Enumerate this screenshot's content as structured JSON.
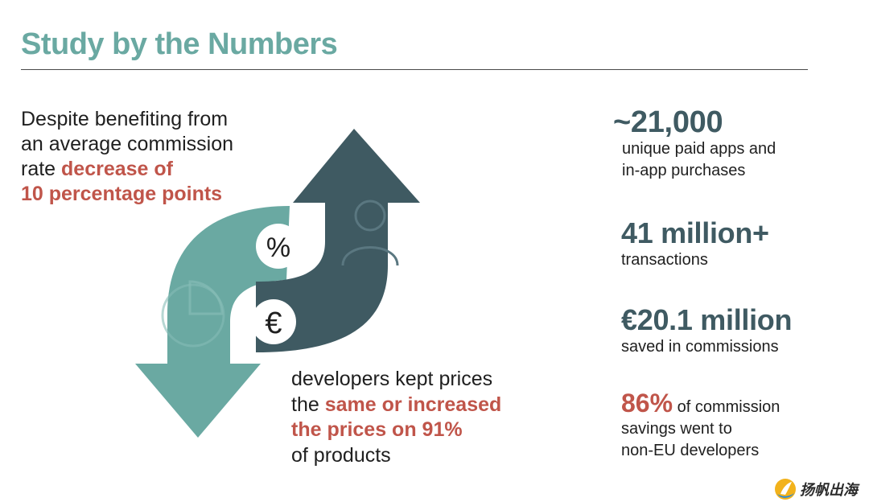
{
  "title": "Study by the Numbers",
  "intro": {
    "line1": "Despite benefiting from",
    "line2": "an average commission",
    "line3_plain": "rate ",
    "line3_highlight": "decrease of",
    "line4_highlight": "10 percentage points"
  },
  "outcome": {
    "line1": "developers kept prices",
    "line2_plain": "the ",
    "line2_highlight": "same or increased",
    "line3_highlight": "the prices on 91%",
    "line4": "of products"
  },
  "graphic": {
    "percent_symbol": "%",
    "euro_symbol": "€"
  },
  "stats": [
    {
      "value": "~21,000",
      "lines": [
        "unique paid apps and",
        "in-app purchases"
      ]
    },
    {
      "value": "41 million+",
      "lines": [
        "transactions"
      ]
    },
    {
      "value": "€20.1 million",
      "lines": [
        "saved in commissions"
      ]
    },
    {
      "value": "86%",
      "inline": " of commission",
      "lines": [
        "savings went to",
        "non-EU developers"
      ]
    }
  ],
  "logo": {
    "text": "扬帆出海"
  },
  "colors": {
    "title": "#6aa9a2",
    "highlight": "#c0554a",
    "stat_value": "#3f5a62",
    "arrow_up": "#3f5a62",
    "arrow_down": "#6aa9a2"
  }
}
